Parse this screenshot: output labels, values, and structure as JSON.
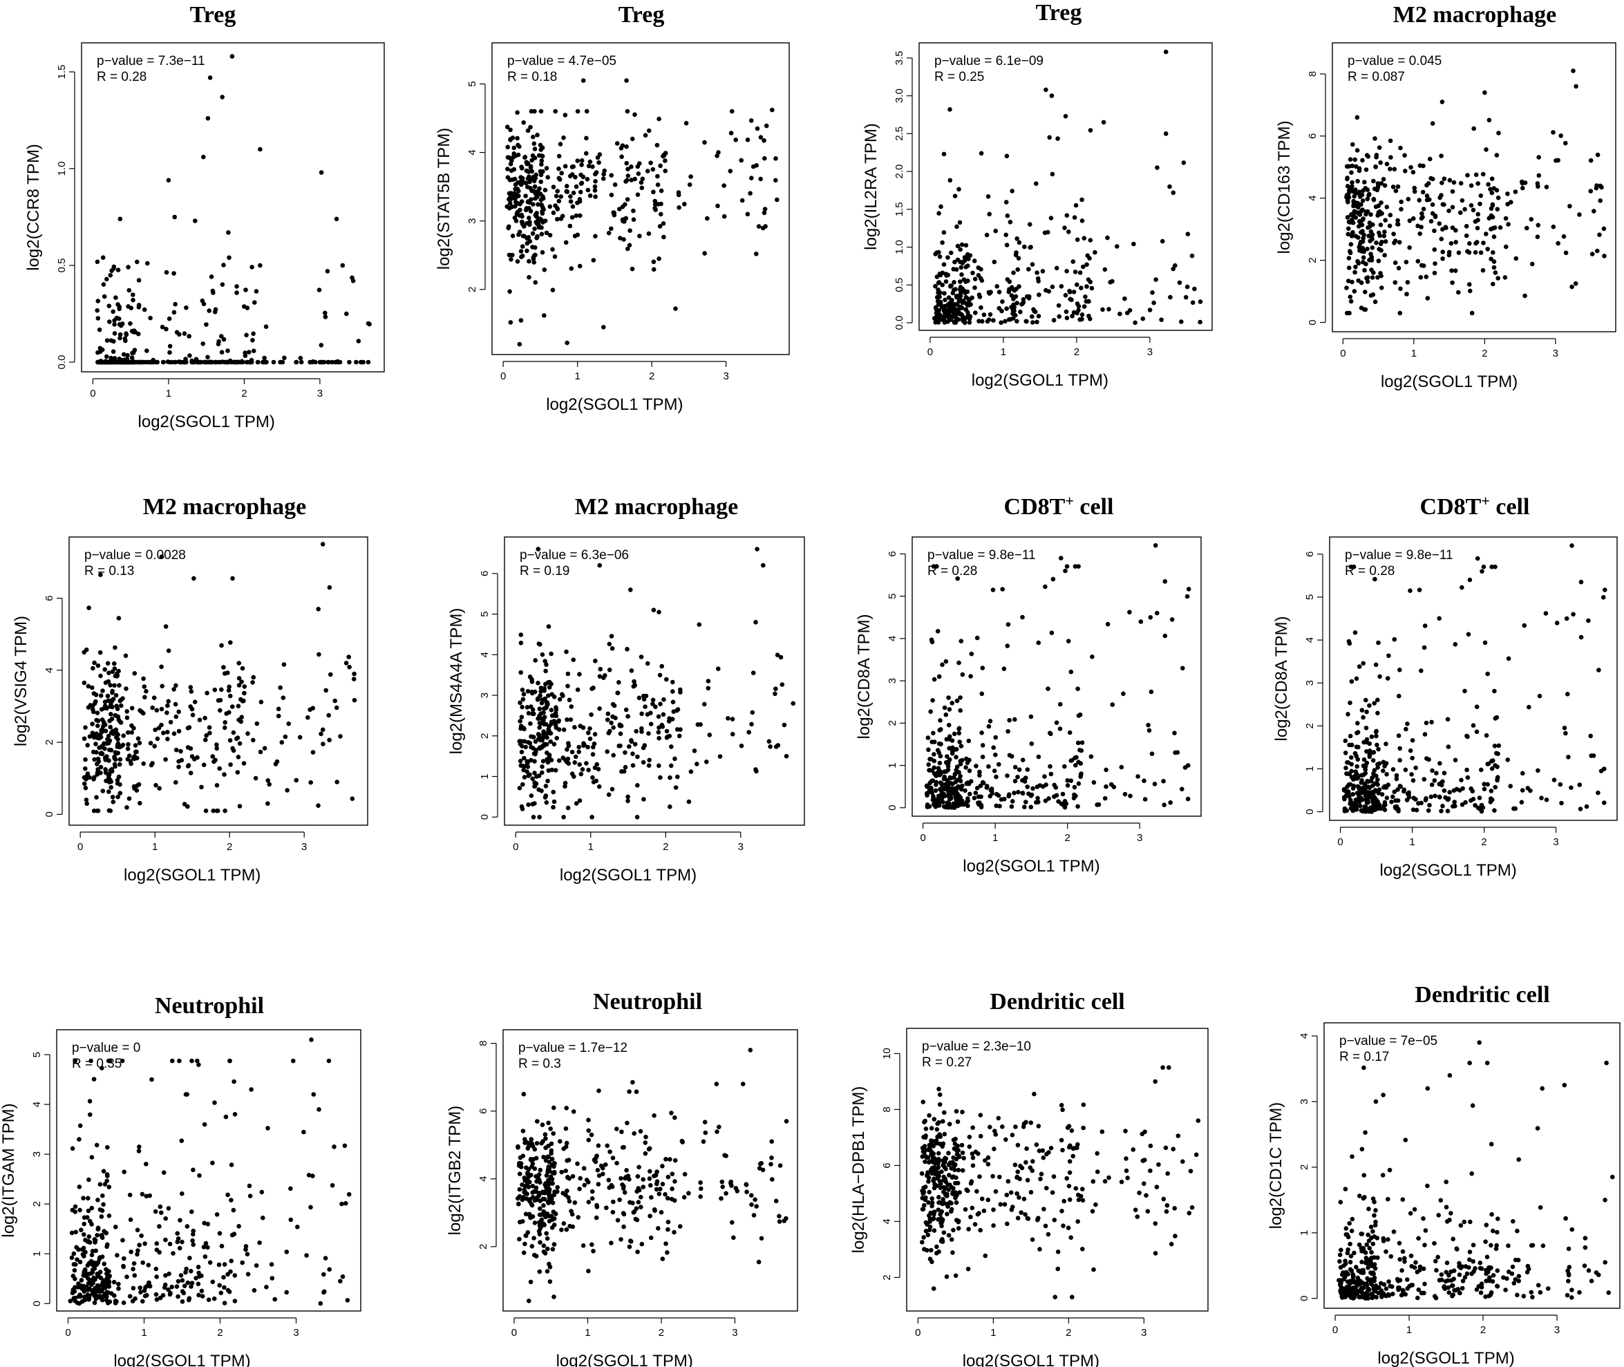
{
  "chart_data": [
    {
      "type": "scatter",
      "title": "Treg",
      "title_sup": "",
      "xlabel": "log2(SGOL1 TPM)",
      "ylabel": "log2(CCR8 TPM)",
      "pvalue_label": "p−value = 7.3e−11",
      "r_label": "R = 0.28",
      "xlim": [
        -0.15,
        3.85
      ],
      "ylim": [
        -0.05,
        1.65
      ],
      "xticks": [
        0,
        1,
        2,
        3
      ],
      "yticks": [
        0.0,
        0.5,
        1.0,
        1.5
      ],
      "ytick_labels": [
        "0.0",
        "0.5",
        "1.0",
        "1.5"
      ],
      "xmax_data": 3.7,
      "ymin_data": 0.0,
      "ymax_data": 1.58,
      "y_dist": "zero",
      "points": [
        [
          1.55,
          1.47
        ],
        [
          1.84,
          1.58
        ],
        [
          1.71,
          1.37
        ],
        [
          1.52,
          1.26
        ],
        [
          2.21,
          1.1
        ],
        [
          1.46,
          1.06
        ],
        [
          1.0,
          0.94
        ],
        [
          3.02,
          0.98
        ],
        [
          1.08,
          0.75
        ],
        [
          0.36,
          0.74
        ],
        [
          3.22,
          0.74
        ],
        [
          1.35,
          0.73
        ],
        [
          1.79,
          0.67
        ],
        [
          1.8,
          0.54
        ],
        [
          2.21,
          0.5
        ],
        [
          3.44,
          0.42
        ],
        [
          3.1,
          0.47
        ],
        [
          3.3,
          0.5
        ],
        [
          3.35,
          0.25
        ],
        [
          3.64,
          0.2
        ]
      ],
      "seed": 101,
      "n": 400
    },
    {
      "type": "scatter",
      "title": "Treg",
      "title_sup": "",
      "xlabel": "log2(SGOL1 TPM)",
      "ylabel": "log2(STAT5B TPM)",
      "pvalue_label": "p−value = 4.7e−05",
      "r_label": "R = 0.18",
      "xlim": [
        -0.15,
        3.85
      ],
      "ylim": [
        1.05,
        5.6
      ],
      "xticks": [
        0,
        1,
        2,
        3
      ],
      "yticks": [
        2,
        3,
        4,
        5
      ],
      "ytick_labels": [
        "2",
        "3",
        "4",
        "5"
      ],
      "xmax_data": 3.7,
      "ymin_data": 1.2,
      "ymax_data": 5.0,
      "y_dist": "normal",
      "y_center": 3.4,
      "y_sd": 0.55,
      "points": [
        [
          0.22,
          1.2
        ],
        [
          0.86,
          1.22
        ],
        [
          1.35,
          1.45
        ],
        [
          2.32,
          1.72
        ],
        [
          0.55,
          1.62
        ],
        [
          0.1,
          1.52
        ],
        [
          1.08,
          5.05
        ],
        [
          1.66,
          5.05
        ],
        [
          3.62,
          4.62
        ],
        [
          3.53,
          2.92
        ],
        [
          3.29,
          3.1
        ]
      ],
      "seed": 102,
      "n": 420
    },
    {
      "type": "scatter",
      "title": "Treg",
      "title_sup": "",
      "xlabel": "log2(SGOL1 TPM)",
      "ylabel": "log2(IL2RA TPM)",
      "pvalue_label": "p−value = 6.1e−09",
      "r_label": "R = 0.25",
      "xlim": [
        -0.15,
        3.85
      ],
      "ylim": [
        -0.1,
        3.7
      ],
      "xticks": [
        0,
        1,
        2,
        3
      ],
      "yticks": [
        0.0,
        0.5,
        1.0,
        1.5,
        2.0,
        2.5,
        3.0,
        3.5
      ],
      "ytick_labels": [
        "0.0",
        "0.5",
        "1.0",
        "1.5",
        "2.0",
        "2.5",
        "3.0",
        "3.5"
      ],
      "xmax_data": 3.7,
      "ymin_data": 0.0,
      "ymax_data": 3.6,
      "y_dist": "exp",
      "y_center": 0.45,
      "points": [
        [
          3.22,
          3.58
        ],
        [
          1.58,
          3.08
        ],
        [
          1.66,
          3.0
        ],
        [
          0.27,
          2.82
        ],
        [
          1.85,
          2.73
        ],
        [
          2.37,
          2.65
        ],
        [
          3.1,
          2.05
        ],
        [
          3.22,
          2.5
        ],
        [
          3.27,
          1.8
        ],
        [
          3.32,
          1.72
        ],
        [
          1.63,
          2.45
        ],
        [
          0.19,
          2.23
        ]
      ],
      "seed": 103,
      "n": 400
    },
    {
      "type": "scatter",
      "title": "M2 macrophage",
      "title_sup": "",
      "xlabel": "log2(SGOL1 TPM)",
      "ylabel": "log2(CD163 TPM)",
      "pvalue_label": "p−value = 0.045",
      "r_label": "R = 0.087",
      "xlim": [
        -0.15,
        3.85
      ],
      "ylim": [
        -0.3,
        9.0
      ],
      "xticks": [
        0,
        1,
        2,
        3
      ],
      "yticks": [
        0,
        2,
        4,
        6,
        8
      ],
      "ytick_labels": [
        "0",
        "2",
        "4",
        "6",
        "8"
      ],
      "xmax_data": 3.7,
      "ymin_data": 0.3,
      "ymax_data": 8.1,
      "y_dist": "normal",
      "y_center": 3.4,
      "y_sd": 1.25,
      "points": [
        [
          3.25,
          8.1
        ],
        [
          3.29,
          7.6
        ],
        [
          2.0,
          7.4
        ],
        [
          1.4,
          7.1
        ],
        [
          0.2,
          6.6
        ],
        [
          3.65,
          4.35
        ],
        [
          3.59,
          2.3
        ],
        [
          3.52,
          2.2
        ],
        [
          0.09,
          0.3
        ]
      ],
      "seed": 104,
      "n": 420
    },
    {
      "type": "scatter",
      "title": "M2 macrophage",
      "title_sup": "",
      "xlabel": "log2(SGOL1 TPM)",
      "ylabel": "log2(VSIG4 TPM)",
      "pvalue_label": "p−value = 0.0028",
      "r_label": "R = 0.13",
      "xlim": [
        -0.15,
        3.85
      ],
      "ylim": [
        -0.3,
        7.7
      ],
      "xticks": [
        0,
        1,
        2,
        3
      ],
      "yticks": [
        0,
        2,
        4,
        6
      ],
      "ytick_labels": [
        "0",
        "2",
        "4",
        "6"
      ],
      "xmax_data": 3.7,
      "ymin_data": 0.1,
      "ymax_data": 7.5,
      "y_dist": "normal",
      "y_center": 2.3,
      "y_sd": 1.15,
      "points": [
        [
          3.25,
          7.5
        ],
        [
          1.09,
          7.15
        ],
        [
          3.34,
          6.3
        ],
        [
          0.27,
          6.65
        ],
        [
          1.52,
          6.55
        ],
        [
          2.04,
          6.55
        ],
        [
          3.19,
          5.7
        ],
        [
          3.67,
          3.9
        ],
        [
          3.44,
          0.9
        ],
        [
          2.51,
          0.3
        ],
        [
          0.23,
          0.1
        ]
      ],
      "seed": 105,
      "n": 420
    },
    {
      "type": "scatter",
      "title": "M2 macrophage",
      "title_sup": "",
      "xlabel": "log2(SGOL1 TPM)",
      "ylabel": "log2(MS4A4A TPM)",
      "pvalue_label": "p−value = 6.3e−06",
      "r_label": "R = 0.19",
      "xlim": [
        -0.15,
        3.85
      ],
      "ylim": [
        -0.2,
        6.9
      ],
      "xticks": [
        0,
        1,
        2,
        3
      ],
      "yticks": [
        0,
        1,
        2,
        3,
        4,
        5,
        6
      ],
      "ytick_labels": [
        "0",
        "1",
        "2",
        "3",
        "4",
        "5",
        "6"
      ],
      "xmax_data": 3.7,
      "ymin_data": 0.0,
      "ymax_data": 6.6,
      "y_dist": "normal",
      "y_center": 2.2,
      "y_sd": 0.95,
      "points": [
        [
          3.22,
          6.6
        ],
        [
          3.3,
          6.2
        ],
        [
          0.3,
          6.6
        ],
        [
          1.12,
          6.2
        ],
        [
          1.53,
          5.6
        ],
        [
          1.84,
          5.1
        ],
        [
          1.91,
          5.05
        ],
        [
          3.2,
          4.8
        ],
        [
          3.7,
          2.8
        ],
        [
          3.61,
          1.5
        ]
      ],
      "seed": 106,
      "n": 420
    },
    {
      "type": "scatter",
      "title": "CD8T",
      "title_sup": "+",
      "title_suffix": " cell",
      "xlabel": "log2(SGOL1 TPM)",
      "ylabel": "log2(CD8A TPM)",
      "pvalue_label": "p−value = 9.8e−11",
      "r_label": "R = 0.28",
      "xlim": [
        -0.15,
        3.85
      ],
      "ylim": [
        -0.2,
        6.4
      ],
      "xticks": [
        0,
        1,
        2,
        3
      ],
      "yticks": [
        0,
        1,
        2,
        3,
        4,
        5,
        6
      ],
      "ytick_labels": [
        "0",
        "1",
        "2",
        "3",
        "4",
        "5",
        "6"
      ],
      "xmax_data": 3.7,
      "ymin_data": 0.0,
      "ymax_data": 6.2,
      "y_dist": "exp",
      "y_center": 1.05,
      "points": [
        [
          3.22,
          6.2
        ],
        [
          1.91,
          5.9
        ],
        [
          3.35,
          5.35
        ],
        [
          1.97,
          5.6
        ],
        [
          0.97,
          5.15
        ],
        [
          3.15,
          4.5
        ],
        [
          3.24,
          4.6
        ],
        [
          3.45,
          4.45
        ],
        [
          3.67,
          1.0
        ],
        [
          3.63,
          0.95
        ]
      ],
      "seed": 107,
      "n": 430
    },
    {
      "type": "scatter",
      "title": "CD8T",
      "title_sup": "+",
      "title_suffix": " cell",
      "xlabel": "log2(SGOL1 TPM)",
      "ylabel": "log2(CD8A TPM)",
      "pvalue_label": "p−value = 9.8e−11",
      "r_label": "R = 0.28",
      "xlim": [
        -0.15,
        3.85
      ],
      "ylim": [
        -0.2,
        6.4
      ],
      "xticks": [
        0,
        1,
        2,
        3
      ],
      "yticks": [
        0,
        1,
        2,
        3,
        4,
        5,
        6
      ],
      "ytick_labels": [
        "0",
        "1",
        "2",
        "3",
        "4",
        "5",
        "6"
      ],
      "xmax_data": 3.7,
      "ymin_data": 0.0,
      "ymax_data": 6.2,
      "y_dist": "exp",
      "y_center": 1.05,
      "points": [
        [
          3.22,
          6.2
        ],
        [
          1.91,
          5.9
        ],
        [
          3.35,
          5.35
        ],
        [
          1.97,
          5.6
        ],
        [
          0.97,
          5.15
        ],
        [
          3.15,
          4.5
        ],
        [
          3.24,
          4.6
        ],
        [
          3.45,
          4.45
        ],
        [
          3.67,
          1.0
        ],
        [
          3.63,
          0.95
        ]
      ],
      "seed": 107,
      "n": 430
    },
    {
      "type": "scatter",
      "title": "Neutrophil",
      "title_sup": "",
      "xlabel": "log2(SGOL1 TPM)",
      "ylabel": "log2(ITGAM TPM)",
      "pvalue_label": "p−value = 0",
      "r_label": "R = 0.35",
      "xlim": [
        -0.15,
        3.85
      ],
      "ylim": [
        -0.15,
        5.5
      ],
      "xticks": [
        0,
        1,
        2,
        3
      ],
      "yticks": [
        0,
        1,
        2,
        3,
        4,
        5
      ],
      "ytick_labels": [
        "0",
        "1",
        "2",
        "3",
        "4",
        "5"
      ],
      "xmax_data": 3.7,
      "ymin_data": 0.0,
      "ymax_data": 5.3,
      "y_dist": "exp",
      "y_center": 1.1,
      "points": [
        [
          3.2,
          5.3
        ],
        [
          1.1,
          4.5
        ],
        [
          1.55,
          4.2
        ],
        [
          2.41,
          4.3
        ],
        [
          3.23,
          4.2
        ],
        [
          3.3,
          3.9
        ],
        [
          3.5,
          3.15
        ],
        [
          3.64,
          3.17
        ],
        [
          3.6,
          2.0
        ],
        [
          3.58,
          0.45
        ],
        [
          0.03,
          0.05
        ]
      ],
      "seed": 109,
      "n": 430
    },
    {
      "type": "scatter",
      "title": "Neutrophil",
      "title_sup": "",
      "xlabel": "log2(SGOL1 TPM)",
      "ylabel": "log2(ITGB2 TPM)",
      "pvalue_label": "p−value = 1.7e−12",
      "r_label": "R = 0.3",
      "xlim": [
        -0.15,
        3.85
      ],
      "ylim": [
        0.1,
        8.4
      ],
      "xticks": [
        0,
        1,
        2,
        3
      ],
      "yticks": [
        2,
        4,
        6,
        8
      ],
      "ytick_labels": [
        "2",
        "4",
        "6",
        "8"
      ],
      "xmax_data": 3.7,
      "ymin_data": 0.4,
      "ymax_data": 7.8,
      "y_dist": "normal",
      "y_center": 3.7,
      "y_sd": 1.05,
      "points": [
        [
          3.21,
          7.8
        ],
        [
          0.2,
          0.4
        ],
        [
          0.13,
          6.5
        ],
        [
          1.15,
          6.6
        ],
        [
          1.61,
          6.85
        ],
        [
          2.75,
          6.8
        ],
        [
          3.11,
          6.8
        ],
        [
          3.7,
          5.7
        ],
        [
          3.6,
          2.9
        ]
      ],
      "seed": 110,
      "n": 430
    },
    {
      "type": "scatter",
      "title": "Dendritic cell",
      "title_sup": "",
      "xlabel": "log2(SGOL1 TPM)",
      "ylabel": "log2(HLA−DPB1 TPM)",
      "pvalue_label": "p−value = 2.3e−10",
      "r_label": "R = 0.27",
      "xlim": [
        -0.15,
        3.85
      ],
      "ylim": [
        0.8,
        10.9
      ],
      "xticks": [
        0,
        1,
        2,
        3
      ],
      "yticks": [
        2,
        4,
        6,
        8,
        10
      ],
      "ytick_labels": [
        "2",
        "4",
        "6",
        "8",
        "10"
      ],
      "xmax_data": 3.7,
      "ymin_data": 1.3,
      "ymax_data": 9.5,
      "y_dist": "normal",
      "y_center": 5.6,
      "y_sd": 1.3,
      "points": [
        [
          3.25,
          9.5
        ],
        [
          3.33,
          9.5
        ],
        [
          3.15,
          9.0
        ],
        [
          1.82,
          1.3
        ],
        [
          0.21,
          1.6
        ],
        [
          3.72,
          7.6
        ],
        [
          3.64,
          4.5
        ],
        [
          3.6,
          4.3
        ]
      ],
      "seed": 111,
      "n": 430
    },
    {
      "type": "scatter",
      "title": "Dendritic cell",
      "title_sup": "",
      "xlabel": "log2(SGOL1 TPM)",
      "ylabel": "log2(CD1C TPM)",
      "pvalue_label": "p−value = 7e−05",
      "r_label": "R = 0.17",
      "xlim": [
        -0.15,
        3.85
      ],
      "ylim": [
        -0.15,
        4.2
      ],
      "xticks": [
        0,
        1,
        2,
        3
      ],
      "yticks": [
        0,
        1,
        2,
        3,
        4
      ],
      "ytick_labels": [
        "0",
        "1",
        "2",
        "3",
        "4"
      ],
      "xmax_data": 3.7,
      "ymin_data": 0.0,
      "ymax_data": 3.9,
      "y_dist": "exp",
      "y_center": 0.5,
      "points": [
        [
          1.95,
          3.9
        ],
        [
          1.55,
          3.4
        ],
        [
          2.8,
          3.2
        ],
        [
          3.1,
          3.25
        ],
        [
          1.25,
          3.2
        ],
        [
          0.65,
          3.1
        ],
        [
          0.55,
          3.0
        ],
        [
          3.75,
          1.85
        ],
        [
          3.65,
          1.5
        ]
      ],
      "seed": 112,
      "n": 430
    }
  ]
}
